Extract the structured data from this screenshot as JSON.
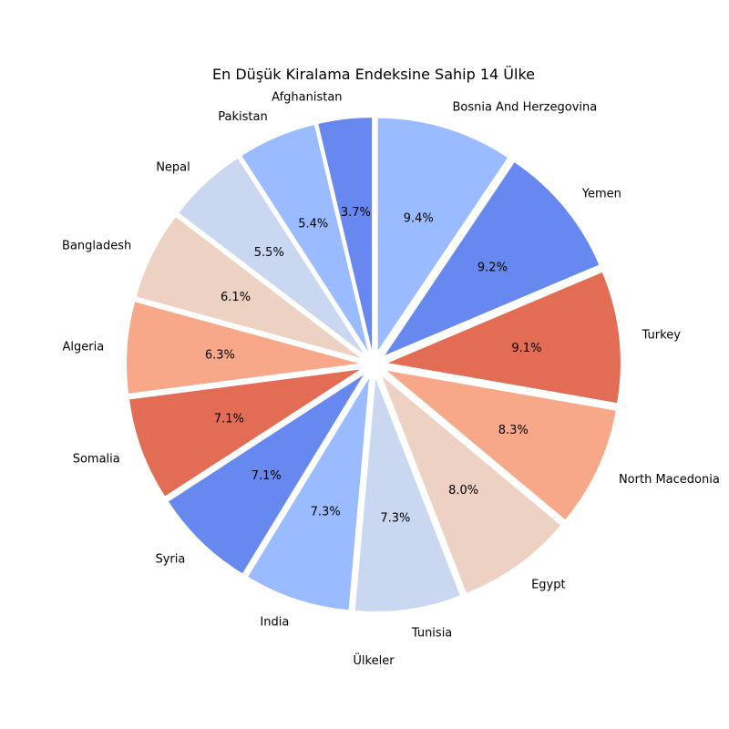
{
  "chart_data": {
    "type": "pie",
    "title": "En Düşük Kiralama Endeksine Sahip 14 Ülke",
    "xlabel": "Ülkeler",
    "start_angle_deg": 90,
    "direction": "clockwise",
    "slices": [
      {
        "label": "Bosnia And Herzegovina",
        "value": 9.4,
        "pct_label": "9.4%",
        "color": "#9abbff"
      },
      {
        "label": "Yemen",
        "value": 9.2,
        "pct_label": "9.2%",
        "color": "#6788ee"
      },
      {
        "label": "Turkey",
        "value": 9.1,
        "pct_label": "9.1%",
        "color": "#e36c55"
      },
      {
        "label": "North Macedonia",
        "value": 8.3,
        "pct_label": "8.3%",
        "color": "#f6a889"
      },
      {
        "label": "Egypt",
        "value": 8.0,
        "pct_label": "8.0%",
        "color": "#edd1c2"
      },
      {
        "label": "Tunisia",
        "value": 7.3,
        "pct_label": "7.3%",
        "color": "#c9d7f0"
      },
      {
        "label": "India",
        "value": 7.3,
        "pct_label": "7.3%",
        "color": "#9abbff"
      },
      {
        "label": "Syria",
        "value": 7.1,
        "pct_label": "7.1%",
        "color": "#6788ee"
      },
      {
        "label": "Somalia",
        "value": 7.1,
        "pct_label": "7.1%",
        "color": "#e36c55"
      },
      {
        "label": "Algeria",
        "value": 6.3,
        "pct_label": "6.3%",
        "color": "#f6a889"
      },
      {
        "label": "Bangladesh",
        "value": 6.1,
        "pct_label": "6.1%",
        "color": "#edd1c2"
      },
      {
        "label": "Nepal",
        "value": 5.5,
        "pct_label": "5.5%",
        "color": "#c9d7f0"
      },
      {
        "label": "Pakistan",
        "value": 5.4,
        "pct_label": "5.4%",
        "color": "#9abbff"
      },
      {
        "label": "Afghanistan",
        "value": 3.7,
        "pct_label": "3.7%",
        "color": "#6788ee"
      }
    ]
  }
}
